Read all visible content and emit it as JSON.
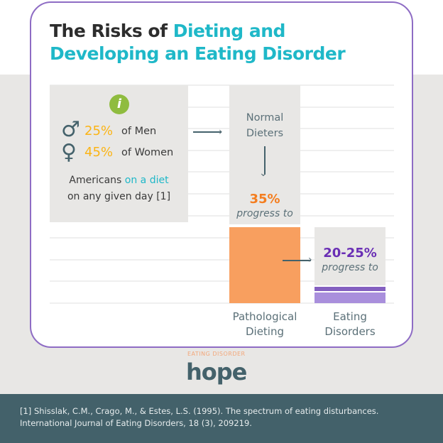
{
  "title": {
    "part1": "The Risks of ",
    "part2": "Dieting and",
    "part3": "Developing an Eating Disorder"
  },
  "stats": {
    "info_icon": "info-icon",
    "men_pct": "25%",
    "men_label": "of Men",
    "women_pct": "45%",
    "women_label": "of Women",
    "desc1": "Americans ",
    "desc_hl": "on a diet",
    "desc2": "on any given day [1]"
  },
  "stages": {
    "normal": "Normal",
    "dieters": "Dieters",
    "pct1": "35%",
    "progress1": "progress to",
    "pct2": "20-25%",
    "progress2": "progress to",
    "pathological": "Pathological",
    "dieting": "Dieting",
    "eating": "Eating",
    "disorders": "Eating Disorders"
  },
  "logo": {
    "top": "EATING DISORDER",
    "word": "hope"
  },
  "footer": {
    "line1": "[1] Shisslak, C.M., Crago, M., & Estes, L.S. (1995). The spectrum of eating disturbances.",
    "line2": "International Journal of Eating Disorders, 18 (3), 209219."
  },
  "colors": {
    "accent": "#1fb8c8",
    "orange": "#f89f5f",
    "purple": "#6a2fb5",
    "border": "#8e6cc4",
    "footer": "#43616a"
  }
}
